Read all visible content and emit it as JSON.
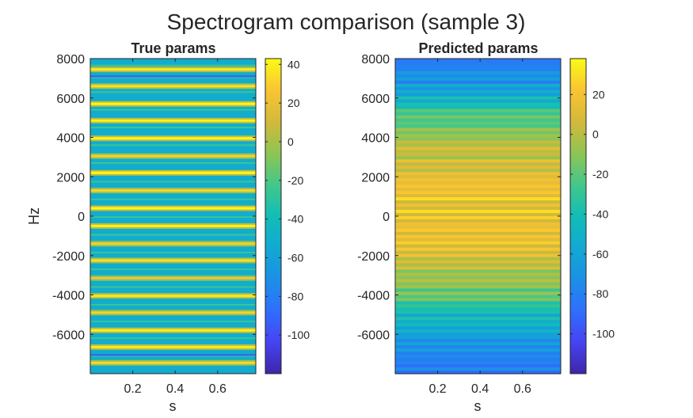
{
  "figure_title": "Spectrogram comparison (sample 3)",
  "chart_data": [
    {
      "type": "heatmap",
      "title": "True params",
      "xlabel": "s",
      "ylabel": "Hz",
      "xlim": [
        0,
        0.78
      ],
      "ylim": [
        -8000,
        8000
      ],
      "xticks": [
        0.2,
        0.4,
        0.6
      ],
      "xtick_labels": [
        "0.2",
        "0.4",
        "0.6"
      ],
      "yticks": [
        8000,
        6000,
        4000,
        2000,
        0,
        -2000,
        -4000,
        -6000
      ],
      "ytick_labels": [
        "8000",
        "6000",
        "4000",
        "2000",
        "0",
        "-2000",
        "-4000",
        "-6000"
      ],
      "colormap": "parula",
      "clim": [
        -120,
        43
      ],
      "colorbar_ticks": [
        40,
        20,
        0,
        -20,
        -40,
        -60,
        -80,
        -100
      ],
      "colorbar_labels": [
        "40",
        "20",
        "0",
        "-20",
        "-40",
        "-60",
        "-80",
        "-100"
      ],
      "background_level_db": -52,
      "harmonic_lines_hz": [
        7450,
        6600,
        5700,
        4850,
        3950,
        3050,
        2200,
        1300,
        400,
        -500,
        -1400,
        -2250,
        -3150,
        -4050,
        -4900,
        -5800,
        -6650,
        -7450
      ],
      "harmonic_levels_db": [
        38,
        35,
        42,
        40,
        42,
        30,
        43,
        32,
        43,
        40,
        30,
        35,
        25,
        38,
        30,
        40,
        38,
        32
      ],
      "weak_lines_hz": [
        7650,
        7050,
        6300,
        5400,
        4500,
        3600,
        2700,
        1750,
        850,
        -50,
        -950,
        -1850,
        -2700,
        -3600,
        -4500,
        -5350,
        -6200,
        -7100
      ],
      "weak_lines_db": -25,
      "dark_rows_hz": [
        7100,
        -7050
      ],
      "dark_rows_db": -95
    },
    {
      "type": "heatmap",
      "title": "Predicted params",
      "xlabel": "s",
      "ylabel": "",
      "xlim": [
        0,
        0.78
      ],
      "ylim": [
        -8000,
        8000
      ],
      "xticks": [
        0.2,
        0.4,
        0.6
      ],
      "xtick_labels": [
        "0.2",
        "0.4",
        "0.6"
      ],
      "yticks": [
        8000,
        6000,
        4000,
        2000,
        0,
        -2000,
        -4000,
        -6000
      ],
      "ytick_labels": [
        "8000",
        "6000",
        "4000",
        "2000",
        "0",
        "-2000",
        "-4000",
        "-6000"
      ],
      "colormap": "parula",
      "clim": [
        -120,
        38
      ],
      "colorbar_ticks": [
        20,
        0,
        -20,
        -40,
        -60,
        -80,
        -100
      ],
      "colorbar_labels": [
        "20",
        "0",
        "-20",
        "-40",
        "-60",
        "-80",
        "-100"
      ],
      "row_spacing_hz": 160,
      "level_profile_hz": [
        -8000,
        -7000,
        -6000,
        -5000,
        -4000,
        -2000,
        0,
        2000,
        4000,
        5000,
        6000,
        7000,
        8000
      ],
      "level_profile_db": [
        -85,
        -75,
        -62,
        -45,
        -20,
        12,
        18,
        14,
        -5,
        -25,
        -50,
        -72,
        -85
      ],
      "row_variation_db": 18
    }
  ]
}
